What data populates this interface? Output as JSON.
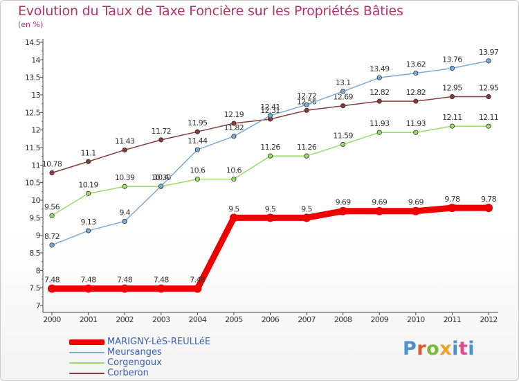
{
  "title": "Evolution du Taux de Taxe Foncière sur les Propriétés Bâties",
  "subtitle": "(en %)",
  "brand": [
    "P",
    "r",
    "o",
    "x",
    "i",
    "t",
    "i"
  ],
  "chart_data": {
    "type": "line",
    "title": "Evolution du Taux de Taxe Foncière sur les Propriétés Bâties",
    "ylabel": "(en %)",
    "xlabel": "",
    "ylim": [
      7,
      14.5
    ],
    "yticks": [
      "7",
      "7.5",
      "8",
      "8.5",
      "9",
      "9.5",
      "10",
      "10.5",
      "11",
      "11.5",
      "12",
      "12.5",
      "13",
      "13.5",
      "14",
      "14.5"
    ],
    "categories": [
      "2000",
      "2001",
      "2002",
      "2003",
      "2004",
      "2005",
      "2006",
      "2007",
      "2008",
      "2009",
      "2010",
      "2011",
      "2012"
    ],
    "grid": false,
    "legend_position": "bottom-left",
    "series": [
      {
        "name": "MARIGNY-LèS-REULLéE",
        "color": "#ee0000",
        "values": [
          7.48,
          7.48,
          7.48,
          7.48,
          7.48,
          9.5,
          9.5,
          9.5,
          9.69,
          9.69,
          9.69,
          9.78,
          9.78
        ],
        "labels": [
          "7.48",
          "7.48",
          "7.48",
          "7.48",
          "7.48",
          "9.5",
          "9.5",
          "9.5",
          "9.69",
          "9.69",
          "9.69",
          "9.78",
          "9.78"
        ]
      },
      {
        "name": "Meursanges",
        "color": "#7aaad6",
        "values": [
          8.72,
          9.13,
          9.4,
          10.4,
          11.44,
          11.82,
          12.41,
          12.72,
          13.1,
          13.49,
          13.62,
          13.76,
          13.97
        ],
        "labels": [
          "8.72",
          "9.13",
          "9.4",
          "10.4",
          "11.44",
          "11.82",
          "12.41",
          "12.72",
          "13.1",
          "13.49",
          "13.62",
          "13.76",
          "13.97"
        ]
      },
      {
        "name": "Corgengoux",
        "color": "#99dd66",
        "values": [
          9.56,
          10.19,
          10.39,
          10.39,
          10.6,
          10.6,
          11.26,
          11.26,
          11.59,
          11.93,
          11.93,
          12.11,
          12.11
        ],
        "labels": [
          "9.56",
          "10.19",
          "10.39",
          "10.39",
          "10.6",
          "10.6",
          "11.26",
          "11.26",
          "11.59",
          "11.93",
          "11.93",
          "12.11",
          "12.11"
        ]
      },
      {
        "name": "Corberon",
        "color": "#8a3a3a",
        "values": [
          10.78,
          11.1,
          11.43,
          11.72,
          11.95,
          12.19,
          12.31,
          12.56,
          12.69,
          12.82,
          12.82,
          12.95,
          12.95
        ],
        "labels": [
          "10.78",
          "11.1",
          "11.43",
          "11.72",
          "11.95",
          "12.19",
          "12.31",
          "12.56",
          "12.69",
          "12.82",
          "12.82",
          "12.95",
          "12.95"
        ]
      }
    ]
  }
}
